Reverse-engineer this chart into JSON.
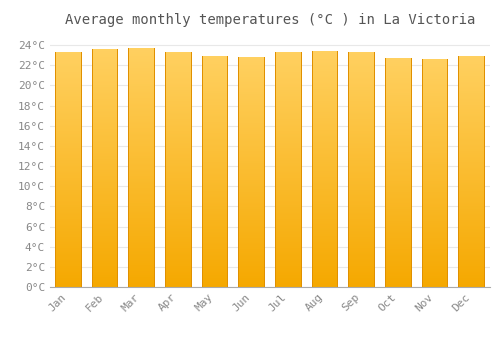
{
  "title": "Average monthly temperatures (°C ) in La Victoria",
  "months": [
    "Jan",
    "Feb",
    "Mar",
    "Apr",
    "May",
    "Jun",
    "Jul",
    "Aug",
    "Sep",
    "Oct",
    "Nov",
    "Dec"
  ],
  "temperatures": [
    23.3,
    23.6,
    23.7,
    23.3,
    22.9,
    22.8,
    23.3,
    23.4,
    23.3,
    22.7,
    22.6,
    22.9
  ],
  "bar_color_bottom": "#F5A800",
  "bar_color_top": "#FFD060",
  "bar_edge_color": "#E09000",
  "ylim": [
    0,
    25
  ],
  "yticks": [
    0,
    2,
    4,
    6,
    8,
    10,
    12,
    14,
    16,
    18,
    20,
    22,
    24
  ],
  "background_color": "#FFFFFF",
  "grid_color": "#E8E8E8",
  "title_fontsize": 10,
  "tick_fontsize": 8,
  "bar_width": 0.72
}
